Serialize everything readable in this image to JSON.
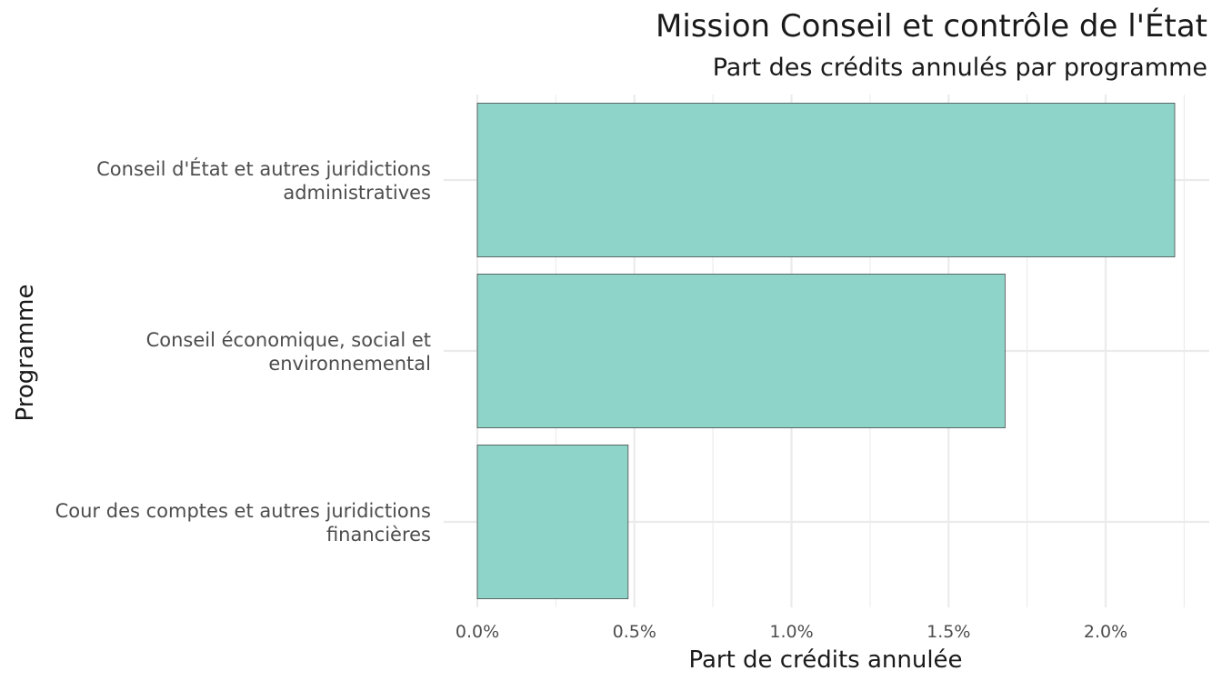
{
  "chart_data": {
    "type": "bar",
    "orientation": "horizontal",
    "title": "Mission Conseil et contrôle de l'État",
    "subtitle": "Part des crédits annulés par programme",
    "xlabel": "Part de crédits annulée",
    "ylabel": "Programme",
    "categories": [
      [
        "Conseil d'État et autres juridictions",
        "administratives"
      ],
      [
        "Conseil économique, social et",
        "environnemental"
      ],
      [
        "Cour des comptes et autres juridictions",
        "financières"
      ]
    ],
    "values": [
      2.22,
      1.68,
      0.48
    ],
    "value_unit": "%",
    "xlim": [
      0,
      2.3
    ],
    "x_ticks": [
      0,
      0.5,
      1.0,
      1.5,
      2.0
    ],
    "x_tick_labels": [
      "0.0%",
      "0.5%",
      "1.0%",
      "1.5%",
      "2.0%"
    ],
    "bar_color": "#8ED4C8",
    "bar_outline_color": "#4d4d4d",
    "grid": true,
    "legend": "none"
  }
}
